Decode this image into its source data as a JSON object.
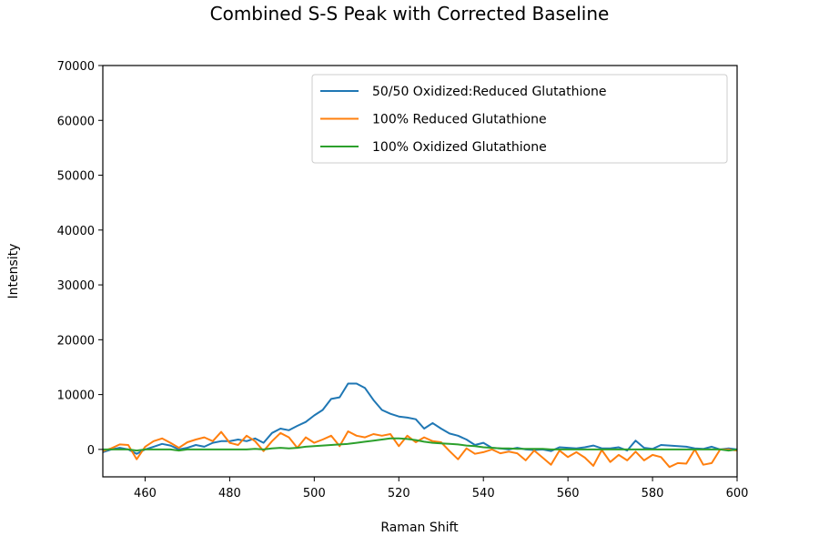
{
  "chart_data": {
    "type": "line",
    "title": "Combined S-S Peak with Corrected Baseline",
    "xlabel": "Raman Shift",
    "ylabel": "Intensity",
    "xlim": [
      450,
      600
    ],
    "ylim": [
      -5000,
      70000
    ],
    "xticks": [
      460,
      480,
      500,
      520,
      540,
      560,
      580,
      600
    ],
    "yticks": [
      0,
      10000,
      20000,
      30000,
      40000,
      50000,
      60000,
      70000
    ],
    "grid": false,
    "legend_position": "top-right",
    "x": [
      450,
      452,
      454,
      456,
      458,
      460,
      462,
      464,
      466,
      468,
      470,
      472,
      474,
      476,
      478,
      480,
      482,
      484,
      486,
      488,
      490,
      492,
      494,
      496,
      498,
      500,
      502,
      504,
      506,
      508,
      510,
      512,
      514,
      516,
      518,
      520,
      522,
      524,
      526,
      528,
      530,
      532,
      534,
      536,
      538,
      540,
      542,
      544,
      546,
      548,
      550,
      552,
      554,
      556,
      558,
      560,
      562,
      564,
      566,
      568,
      570,
      572,
      574,
      576,
      578,
      580,
      582,
      584,
      586,
      588,
      590,
      592,
      594,
      596,
      598,
      600
    ],
    "series": [
      {
        "name": "50/50 Oxidized:Reduced Glutathione",
        "color": "#1f77b4",
        "values": [
          -500,
          0,
          300,
          0,
          -800,
          0,
          500,
          1000,
          700,
          0,
          300,
          800,
          500,
          1200,
          1500,
          1500,
          1800,
          1500,
          2000,
          1200,
          3000,
          3800,
          3500,
          4300,
          5000,
          6200,
          7200,
          9200,
          9500,
          12000,
          12000,
          11200,
          9000,
          7200,
          6500,
          6000,
          5800,
          5500,
          3800,
          4800,
          3800,
          2900,
          2500,
          1800,
          800,
          1200,
          300,
          200,
          0,
          300,
          0,
          -100,
          0,
          -300,
          400,
          300,
          200,
          400,
          700,
          200,
          200,
          400,
          -200,
          1600,
          300,
          100,
          800,
          700,
          600,
          500,
          200,
          100,
          500,
          0,
          200,
          0
        ]
      },
      {
        "name": "100% Reduced Glutathione",
        "color": "#ff7f0e",
        "values": [
          -300,
          200,
          900,
          800,
          -1800,
          500,
          1500,
          2000,
          1200,
          300,
          1300,
          1800,
          2200,
          1500,
          3200,
          1200,
          800,
          2500,
          1500,
          -300,
          1500,
          3000,
          2200,
          300,
          2200,
          1200,
          1800,
          2500,
          600,
          3300,
          2500,
          2200,
          2800,
          2500,
          2800,
          600,
          2500,
          1300,
          2200,
          1500,
          1300,
          -300,
          -1800,
          200,
          -800,
          -500,
          0,
          -700,
          -400,
          -700,
          -2000,
          -200,
          -1500,
          -2800,
          -200,
          -1400,
          -500,
          -1500,
          -3000,
          -100,
          -2300,
          -1000,
          -2000,
          -400,
          -2000,
          -1000,
          -1400,
          -3200,
          -2500,
          -2600,
          0,
          -2800,
          -2500,
          0,
          0,
          -200
        ]
      },
      {
        "name": "100% Oxidized Glutathione",
        "color": "#2ca02c",
        "values": [
          0,
          0,
          0,
          0,
          -200,
          0,
          0,
          0,
          0,
          -200,
          0,
          0,
          0,
          0,
          0,
          0,
          0,
          0,
          100,
          0,
          200,
          300,
          200,
          300,
          500,
          600,
          700,
          800,
          900,
          1000,
          1200,
          1400,
          1600,
          1800,
          2000,
          2000,
          1900,
          1700,
          1400,
          1200,
          1100,
          1000,
          900,
          700,
          600,
          400,
          300,
          200,
          200,
          100,
          100,
          100,
          100,
          0,
          0,
          0,
          0,
          0,
          0,
          0,
          0,
          0,
          0,
          0,
          0,
          0,
          0,
          0,
          0,
          0,
          0,
          0,
          0,
          0,
          -200,
          0
        ]
      }
    ]
  }
}
